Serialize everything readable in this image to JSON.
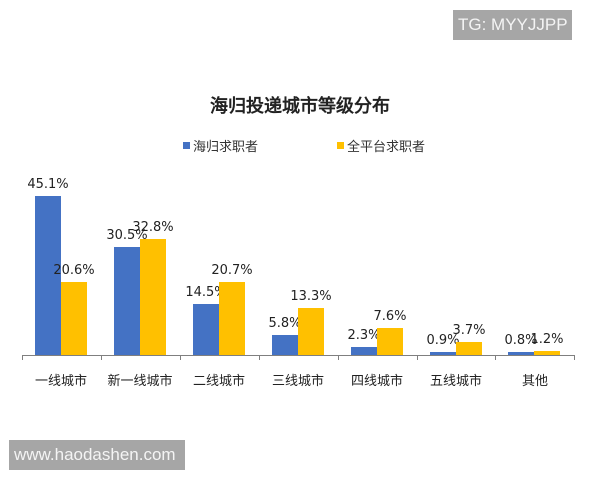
{
  "watermarks": {
    "top": "TG: MYYJJPP",
    "bottom": "www.haodashen.com"
  },
  "chart_data": {
    "type": "bar",
    "title": "海归投递城市等级分布",
    "categories": [
      "一线城市",
      "新一线城市",
      "二线城市",
      "三线城市",
      "四线城市",
      "五线城市",
      "其他"
    ],
    "series": [
      {
        "name": "海归求职者",
        "color": "#4472c4",
        "values": [
          45.1,
          30.5,
          14.5,
          5.8,
          2.3,
          0.9,
          0.8
        ],
        "labels": [
          "45.1%",
          "30.5%",
          "14.5%",
          "5.8%",
          "2.3%",
          "0.9%",
          "0.8%"
        ]
      },
      {
        "name": "全平台求职者",
        "color": "#ffc000",
        "values": [
          20.6,
          32.8,
          20.7,
          13.3,
          7.6,
          3.7,
          1.2
        ],
        "labels": [
          "20.6%",
          "32.8%",
          "20.7%",
          "13.3%",
          "7.6%",
          "3.7%",
          "1.2%"
        ]
      }
    ],
    "xlabel": "",
    "ylabel": "",
    "ylim": [
      0,
      50
    ],
    "grid": false,
    "legend_position": "top",
    "data_labels": true
  }
}
